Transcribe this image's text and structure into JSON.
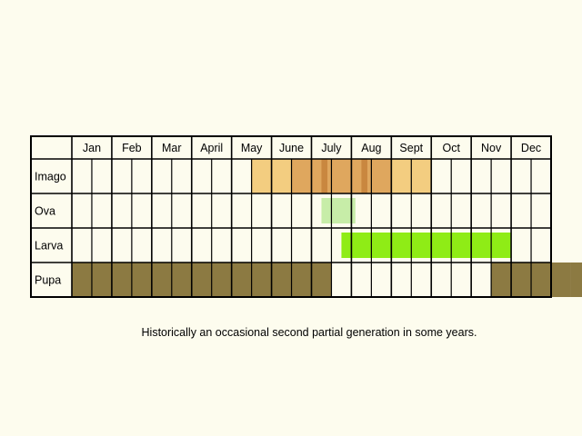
{
  "months": [
    "Jan",
    "Feb",
    "Mar",
    "April",
    "May",
    "June",
    "July",
    "Aug",
    "Sept",
    "Oct",
    "Nov",
    "Dec"
  ],
  "colors": {
    "background": "#fdfcee",
    "grid": "#000000",
    "imago_light": "#f3cd80",
    "imago_mid": "#dfa75e",
    "imago_dark": "#c9873f",
    "ova": "#c7eda8",
    "larva": "#8fec16",
    "pupa": "#8c7a42"
  },
  "stages": [
    {
      "label": "Imago",
      "cells": [
        {
          "quarter": 9,
          "color": "#f3cd80"
        },
        {
          "quarter": 10,
          "color": "#f3cd80"
        },
        {
          "quarter": 11,
          "color": "#dfa75e"
        },
        {
          "quarter": 12,
          "color": "#dfa75e"
        },
        {
          "quarter": 13,
          "color": "#dfa75e"
        },
        {
          "quarter": 14,
          "color": "#dfa75e"
        },
        {
          "quarter": 15,
          "color": "#dfa75e"
        },
        {
          "quarter": 16,
          "color": "#f3cd80"
        },
        {
          "quarter": 17,
          "color": "#f3cd80"
        }
      ],
      "accents": [
        {
          "from": 12.5,
          "to": 12.8,
          "color": "#c9873f"
        },
        {
          "from": 14.5,
          "to": 14.8,
          "color": "#c9873f"
        }
      ]
    },
    {
      "label": "Ova",
      "cells": [],
      "bands": [
        {
          "from": 12.5,
          "to": 14.2,
          "color": "#c7eda8"
        }
      ]
    },
    {
      "label": "Larva",
      "cells": [],
      "bands": [
        {
          "from": 13.5,
          "to": 22.0,
          "color": "#8fec16"
        }
      ]
    },
    {
      "label": "Pupa",
      "cells": [
        {
          "quarter": 0,
          "color": "#8c7a42"
        },
        {
          "quarter": 1,
          "color": "#8c7a42"
        },
        {
          "quarter": 2,
          "color": "#8c7a42"
        },
        {
          "quarter": 3,
          "color": "#8c7a42"
        },
        {
          "quarter": 4,
          "color": "#8c7a42"
        },
        {
          "quarter": 5,
          "color": "#8c7a42"
        },
        {
          "quarter": 6,
          "color": "#8c7a42"
        },
        {
          "quarter": 7,
          "color": "#8c7a42"
        },
        {
          "quarter": 8,
          "color": "#8c7a42"
        },
        {
          "quarter": 9,
          "color": "#8c7a42"
        },
        {
          "quarter": 10,
          "color": "#8c7a42"
        },
        {
          "quarter": 11,
          "color": "#8c7a42"
        },
        {
          "quarter": 12,
          "color": "#8c7a42"
        },
        {
          "quarter": 21,
          "color": "#8c7a42"
        },
        {
          "quarter": 22,
          "color": "#8c7a42"
        },
        {
          "quarter": 23,
          "color": "#8c7a42"
        },
        {
          "quarter": 24,
          "color": "#8c7a42"
        },
        {
          "quarter": 25,
          "color": "#8c7a42"
        }
      ]
    }
  ],
  "note": "Historically an occasional second partial generation in some years."
}
